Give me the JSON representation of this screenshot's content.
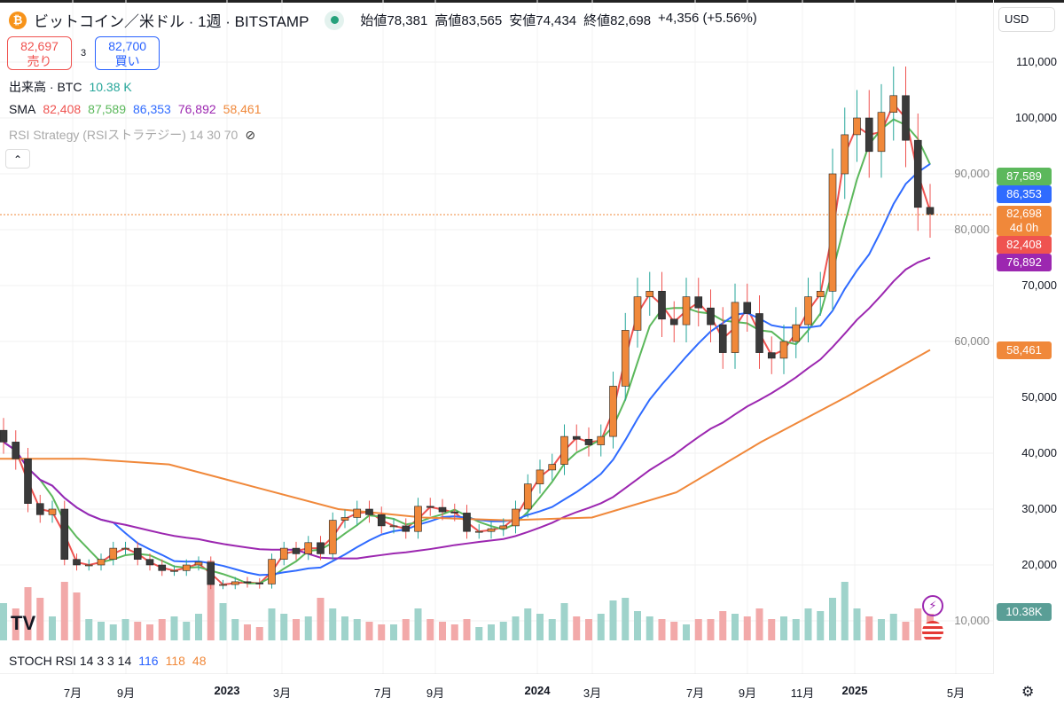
{
  "header": {
    "symbol": "ビットコイン／米ドル · 1週 · BITSTAMP",
    "coin_icon": "₿",
    "open_label": "始値",
    "open": "78,381",
    "high_label": "高値",
    "high": "83,565",
    "low_label": "安値",
    "low": "74,434",
    "close_label": "終値",
    "close": "82,698",
    "change": "+4,356 (+5.56%)"
  },
  "trade": {
    "sell_price": "82,697",
    "sell_label": "売り",
    "spread": "3",
    "buy_price": "82,700",
    "buy_label": "買い"
  },
  "volume_legend": {
    "label": "出来高 · BTC",
    "value": "10.38 K"
  },
  "sma_legend": {
    "label": "SMA",
    "values": [
      "82,408",
      "87,589",
      "86,353",
      "76,892",
      "58,461"
    ]
  },
  "rsi_legend": {
    "label": "RSI Strategy (RSIストラテジー) 14 30 70"
  },
  "stoch_legend": {
    "label": "STOCH RSI 14 3 3 14",
    "v1": "116",
    "v2": "118",
    "v3": "48"
  },
  "currency": "USD",
  "price_tags": {
    "sma2": "87,589",
    "sma3": "86,353",
    "last": "82,698",
    "countdown": "4d 0h",
    "sma1": "82,408",
    "sma4": "76,892",
    "sma5": "58,461",
    "volume": "10.38K"
  },
  "colors": {
    "up": "#f0883a",
    "down": "#3a3a3a",
    "sma1": "#ef5350",
    "sma2": "#5cb85c",
    "sma3": "#2f6bff",
    "sma4": "#9c27b0",
    "sma5": "#f0883a",
    "vol_up": "#9fd3cb",
    "vol_down": "#f2a9a9"
  },
  "chart_data": {
    "type": "candlestick",
    "title": "ビットコイン／米ドル · 1週 · BITSTAMP",
    "y_ticks": [
      "110,000",
      "100,000",
      "90,000",
      "80,000",
      "70,000",
      "60,000",
      "50,000",
      "40,000",
      "30,000",
      "20,000",
      "10,000"
    ],
    "y_tick_values": [
      110000,
      100000,
      90000,
      80000,
      70000,
      60000,
      50000,
      40000,
      30000,
      20000,
      10000
    ],
    "ylim": [
      5000,
      116000
    ],
    "x_ticks": [
      {
        "label": "7月",
        "bold": false
      },
      {
        "label": "9月",
        "bold": false
      },
      {
        "label": "2023",
        "bold": true
      },
      {
        "label": "3月",
        "bold": false
      },
      {
        "label": "7月",
        "bold": false
      },
      {
        "label": "9月",
        "bold": false
      },
      {
        "label": "2024",
        "bold": true
      },
      {
        "label": "3月",
        "bold": false
      },
      {
        "label": "7月",
        "bold": false
      },
      {
        "label": "9月",
        "bold": false
      },
      {
        "label": "11月",
        "bold": false
      },
      {
        "label": "2025",
        "bold": true
      },
      {
        "label": "5月",
        "bold": false
      }
    ],
    "closes_k": [
      42,
      39,
      31,
      29,
      30,
      21,
      20,
      20,
      21,
      23,
      23,
      21,
      20,
      19,
      19,
      20,
      20.5,
      16.5,
      16.5,
      17,
      16.8,
      16.6,
      21,
      23,
      22,
      24,
      22,
      28,
      28.5,
      30,
      29,
      27,
      27,
      26,
      30.5,
      30.3,
      29.5,
      29.3,
      26,
      26,
      26.5,
      27,
      30,
      34.5,
      37,
      38,
      43,
      42.5,
      41.5,
      43,
      52,
      62,
      68,
      69,
      64,
      63,
      68,
      66,
      63,
      58,
      67,
      65,
      58,
      57,
      60,
      63,
      68,
      69,
      90,
      97,
      100,
      94,
      101,
      104,
      96,
      84,
      82.7
    ],
    "volumes_k": [
      14,
      12,
      20,
      16,
      9,
      22,
      18,
      8,
      7,
      6,
      8,
      7,
      6,
      8,
      9,
      7,
      10,
      30,
      14,
      8,
      6,
      5,
      12,
      10,
      8,
      9,
      16,
      12,
      9,
      8,
      7,
      6,
      6,
      8,
      12,
      8,
      7,
      6,
      8,
      5,
      6,
      7,
      9,
      12,
      10,
      8,
      14,
      9,
      8,
      10,
      15,
      16,
      11,
      9,
      8,
      7,
      6,
      8,
      8,
      11,
      10,
      9,
      12,
      8,
      9,
      8,
      12,
      11,
      16,
      22,
      12,
      9,
      8,
      10,
      7,
      12,
      10
    ],
    "sma5_points_k": [
      39,
      39,
      38,
      34,
      30,
      28.5,
      28,
      28.5,
      33,
      42,
      50,
      58.5
    ]
  }
}
